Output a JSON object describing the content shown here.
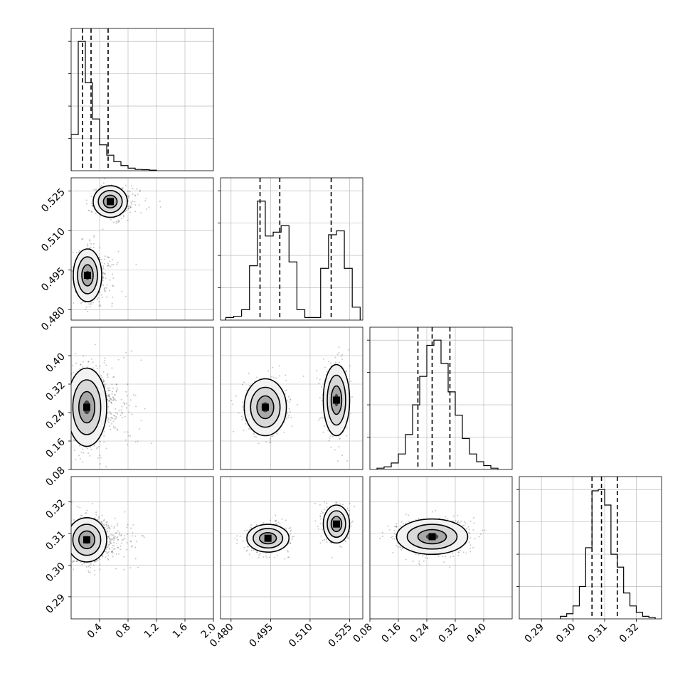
{
  "chart_data": {
    "type": "corner",
    "parameters": [
      {
        "xlim": [
          0.0,
          2.0
        ],
        "ticks": [
          0.4,
          0.8,
          1.2,
          1.6,
          2.0
        ],
        "tick_labels": [
          "0.4",
          "0.8",
          "1.2",
          "1.6",
          "2.0"
        ],
        "quantiles": [
          0.16,
          0.28,
          0.52
        ],
        "histogram": {
          "bins": [
            0.0,
            0.1,
            0.2,
            0.3,
            0.4,
            0.5,
            0.6,
            0.7,
            0.8,
            0.9,
            1.0,
            1.1,
            1.2
          ],
          "counts": [
            0.28,
            1.0,
            0.68,
            0.4,
            0.2,
            0.12,
            0.07,
            0.04,
            0.02,
            0.01,
            0.008,
            0.004
          ]
        }
      },
      {
        "xlim": [
          0.476,
          0.53
        ],
        "ticks": [
          0.48,
          0.495,
          0.51,
          0.525
        ],
        "tick_labels": [
          "0.480",
          "0.495",
          "0.510",
          "0.525"
        ],
        "quantiles": [
          0.491,
          0.4985,
          0.518
        ],
        "histogram": {
          "bins": [
            0.478,
            0.481,
            0.484,
            0.487,
            0.49,
            0.493,
            0.496,
            0.499,
            0.502,
            0.505,
            0.508,
            0.511,
            0.514,
            0.517,
            0.52,
            0.523,
            0.526,
            0.529
          ],
          "counts": [
            0.02,
            0.03,
            0.08,
            0.42,
            0.92,
            0.65,
            0.68,
            0.73,
            0.45,
            0.08,
            0.02,
            0.02,
            0.4,
            0.66,
            0.69,
            0.4,
            0.1
          ]
        }
      },
      {
        "xlim": [
          0.08,
          0.48
        ],
        "ticks": [
          0.08,
          0.16,
          0.24,
          0.32,
          0.4
        ],
        "tick_labels": [
          "0.08",
          "0.16",
          "0.24",
          "0.32",
          "0.40"
        ],
        "quantiles": [
          0.215,
          0.255,
          0.305
        ],
        "histogram": {
          "bins": [
            0.1,
            0.12,
            0.14,
            0.16,
            0.18,
            0.2,
            0.22,
            0.24,
            0.26,
            0.28,
            0.3,
            0.32,
            0.34,
            0.36,
            0.38,
            0.4,
            0.42,
            0.44
          ],
          "counts": [
            0.01,
            0.02,
            0.05,
            0.12,
            0.27,
            0.5,
            0.72,
            0.96,
            1.0,
            0.82,
            0.6,
            0.42,
            0.24,
            0.12,
            0.06,
            0.03,
            0.01
          ]
        }
      },
      {
        "xlim": [
          0.283,
          0.328
        ],
        "ticks": [
          0.29,
          0.3,
          0.31,
          0.32
        ],
        "tick_labels": [
          "0.29",
          "0.30",
          "0.31",
          "0.32"
        ],
        "quantiles": [
          0.306,
          0.309,
          0.314
        ],
        "histogram": {
          "bins": [
            0.296,
            0.298,
            0.3,
            0.302,
            0.304,
            0.306,
            0.308,
            0.31,
            0.312,
            0.314,
            0.316,
            0.318,
            0.32,
            0.322,
            0.324,
            0.326
          ],
          "counts": [
            0.02,
            0.04,
            0.1,
            0.25,
            0.55,
            0.99,
            1.0,
            0.88,
            0.5,
            0.4,
            0.2,
            0.1,
            0.05,
            0.02,
            0.01
          ]
        }
      }
    ],
    "pairs": [
      {
        "row": 1,
        "col": 0,
        "ylim": [
          0.476,
          0.53
        ],
        "ticks": [
          0.48,
          0.495,
          0.51,
          0.525
        ],
        "tick_labels": [
          "0.480",
          "0.495",
          "0.510",
          "0.525"
        ],
        "modes": [
          {
            "x": 0.23,
            "y": 0.493,
            "sx": 0.1,
            "sy": 0.005,
            "w": 0.55
          },
          {
            "x": 0.55,
            "y": 0.521,
            "sx": 0.12,
            "sy": 0.003,
            "w": 0.45
          }
        ]
      },
      {
        "row": 2,
        "col": 0,
        "ylim": [
          0.08,
          0.48
        ],
        "ticks": [
          0.08,
          0.16,
          0.24,
          0.32,
          0.4
        ],
        "tick_labels": [
          "0.08",
          "0.16",
          "0.24",
          "0.32",
          "0.40"
        ],
        "modes": [
          {
            "x": 0.22,
            "y": 0.255,
            "sx": 0.14,
            "sy": 0.055,
            "w": 1.0
          }
        ]
      },
      {
        "row": 2,
        "col": 1,
        "modes": [
          {
            "x": 0.493,
            "y": 0.255,
            "sx": 0.004,
            "sy": 0.04,
            "w": 0.55
          },
          {
            "x": 0.52,
            "y": 0.275,
            "sx": 0.0025,
            "sy": 0.05,
            "w": 0.45
          }
        ]
      },
      {
        "row": 3,
        "col": 0,
        "ylim": [
          0.283,
          0.328
        ],
        "ticks": [
          0.29,
          0.3,
          0.31,
          0.32
        ],
        "tick_labels": [
          "0.29",
          "0.30",
          "0.31",
          "0.32"
        ],
        "modes": [
          {
            "x": 0.22,
            "y": 0.308,
            "sx": 0.14,
            "sy": 0.0035,
            "w": 1.0
          }
        ]
      },
      {
        "row": 3,
        "col": 1,
        "modes": [
          {
            "x": 0.494,
            "y": 0.3085,
            "sx": 0.004,
            "sy": 0.0022,
            "w": 0.55
          },
          {
            "x": 0.52,
            "y": 0.313,
            "sx": 0.0025,
            "sy": 0.003,
            "w": 0.45
          }
        ]
      },
      {
        "row": 3,
        "col": 2,
        "modes": [
          {
            "x": 0.255,
            "y": 0.309,
            "sx": 0.05,
            "sy": 0.0028,
            "w": 1.0
          }
        ]
      }
    ],
    "grid": true,
    "colors": {
      "points": "#000000",
      "contour": "#000000",
      "quantile": "#000000",
      "grid": "#b0b0b0"
    }
  }
}
